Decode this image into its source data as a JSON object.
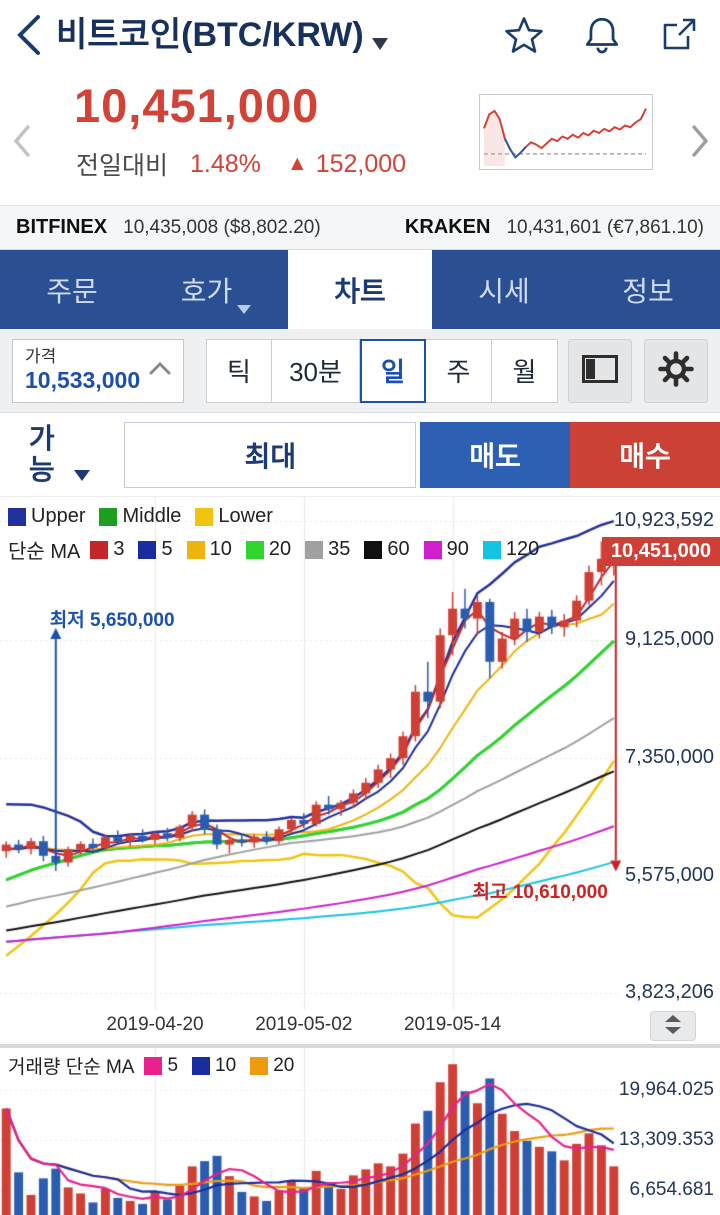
{
  "header": {
    "title": "비트코인(BTC/KRW)"
  },
  "price_summary": {
    "current": "10,451,000",
    "change_label": "전일대비",
    "change_percent": "1.48%",
    "up_arrow": "▲",
    "change_amount": "152,000"
  },
  "exchanges": [
    {
      "name": "BITFINEX",
      "price": "10,435,008",
      "fiat": "($8,802.20)"
    },
    {
      "name": "KRAKEN",
      "price": "10,431,601",
      "fiat": "(€7,861.10)"
    }
  ],
  "tabs": [
    {
      "label": "주문"
    },
    {
      "label": "호가"
    },
    {
      "label": "차트"
    },
    {
      "label": "시세"
    },
    {
      "label": "정보"
    }
  ],
  "controls": {
    "price_label": "가격",
    "price_value": "10,533,000",
    "timeframes": [
      {
        "label": "틱"
      },
      {
        "label": "30분"
      },
      {
        "label": "일"
      },
      {
        "label": "주"
      },
      {
        "label": "월"
      }
    ]
  },
  "trade": {
    "available": "가능",
    "max": "최대",
    "sell": "매도",
    "buy": "매수"
  },
  "legend": {
    "bollinger": [
      {
        "label": "Upper",
        "color": "#23309b"
      },
      {
        "label": "Middle",
        "color": "#1e9e1e"
      },
      {
        "label": "Lower",
        "color": "#f2c40f"
      }
    ],
    "ma_title": "단순 MA",
    "ma": [
      {
        "label": "3",
        "color": "#c3272b"
      },
      {
        "label": "5",
        "color": "#1a2d9e"
      },
      {
        "label": "10",
        "color": "#efb310"
      },
      {
        "label": "20",
        "color": "#2fd42f"
      },
      {
        "label": "35",
        "color": "#a0a0a0"
      },
      {
        "label": "60",
        "color": "#101010"
      },
      {
        "label": "90",
        "color": "#cf1fcf"
      },
      {
        "label": "120",
        "color": "#17c3e3"
      }
    ]
  },
  "volume_legend": {
    "title": "거래량 단순 MA",
    "ma": [
      {
        "label": "5",
        "color": "#e8218e"
      },
      {
        "label": "10",
        "color": "#1a2d9e"
      },
      {
        "label": "20",
        "color": "#ef9b10"
      }
    ]
  },
  "chart_data": {
    "type": "candlestick",
    "title": "BTC/KRW daily chart with Bollinger bands and simple moving averages",
    "y_range": [
      3560000,
      11280000
    ],
    "y_ticks": [
      {
        "value": 10923592,
        "label": "10,923,592"
      },
      {
        "value": 9125000,
        "label": "9,125,000"
      },
      {
        "value": 7350000,
        "label": "7,350,000"
      },
      {
        "value": 5575000,
        "label": "5,575,000"
      },
      {
        "value": 3823206,
        "label": "3,823,206"
      }
    ],
    "current_price": {
      "value": 10451000,
      "label": "10,451,000"
    },
    "x_ticks": [
      {
        "index": 12,
        "label": "2019-04-20"
      },
      {
        "index": 24,
        "label": "2019-05-02"
      },
      {
        "index": 36,
        "label": "2019-05-14"
      }
    ],
    "annotations": {
      "low": {
        "label": "최저 5,650,000",
        "value": 5650000,
        "index": 4
      },
      "high": {
        "label": "최고 10,610,000",
        "value": 10610000,
        "index": 48
      }
    },
    "candle_up_color": "#cf3f35",
    "candle_down_color": "#2a5cb0",
    "ma_windows": [
      3,
      5,
      10,
      20,
      35,
      60,
      90,
      120
    ],
    "bollinger": {
      "window": 20,
      "mult": 2
    },
    "candles": [
      [
        5950000,
        6100000,
        5850000,
        6050000
      ],
      [
        6050000,
        6120000,
        5920000,
        5980000
      ],
      [
        5980000,
        6150000,
        5900000,
        6100000
      ],
      [
        6100000,
        6180000,
        5800000,
        5880000
      ],
      [
        5880000,
        5950000,
        5650000,
        5780000
      ],
      [
        5780000,
        6020000,
        5720000,
        5980000
      ],
      [
        5980000,
        6100000,
        5900000,
        6060000
      ],
      [
        6060000,
        6140000,
        5960000,
        6000000
      ],
      [
        6000000,
        6200000,
        5950000,
        6160000
      ],
      [
        6160000,
        6260000,
        6050000,
        6100000
      ],
      [
        6100000,
        6220000,
        6020000,
        6180000
      ],
      [
        6180000,
        6280000,
        6080000,
        6120000
      ],
      [
        6120000,
        6250000,
        6050000,
        6220000
      ],
      [
        6220000,
        6300000,
        6100000,
        6150000
      ],
      [
        6150000,
        6350000,
        6100000,
        6320000
      ],
      [
        6320000,
        6550000,
        6250000,
        6500000
      ],
      [
        6500000,
        6580000,
        6200000,
        6280000
      ],
      [
        6280000,
        6350000,
        5980000,
        6050000
      ],
      [
        6050000,
        6180000,
        5920000,
        6120000
      ],
      [
        6120000,
        6220000,
        6020000,
        6080000
      ],
      [
        6080000,
        6200000,
        6000000,
        6170000
      ],
      [
        6170000,
        6250000,
        6050000,
        6100000
      ],
      [
        6100000,
        6320000,
        6060000,
        6280000
      ],
      [
        6280000,
        6450000,
        6220000,
        6420000
      ],
      [
        6420000,
        6520000,
        6300000,
        6360000
      ],
      [
        6360000,
        6700000,
        6320000,
        6650000
      ],
      [
        6650000,
        6780000,
        6500000,
        6580000
      ],
      [
        6580000,
        6720000,
        6480000,
        6680000
      ],
      [
        6680000,
        6880000,
        6600000,
        6820000
      ],
      [
        6820000,
        7050000,
        6720000,
        6980000
      ],
      [
        6980000,
        7250000,
        6900000,
        7180000
      ],
      [
        7180000,
        7420000,
        7050000,
        7350000
      ],
      [
        7350000,
        7750000,
        7250000,
        7680000
      ],
      [
        7680000,
        8450000,
        7600000,
        8350000
      ],
      [
        8350000,
        8800000,
        7950000,
        8200000
      ],
      [
        8200000,
        9300000,
        8100000,
        9200000
      ],
      [
        9200000,
        9850000,
        8900000,
        9600000
      ],
      [
        9600000,
        9900000,
        9300000,
        9450000
      ],
      [
        9450000,
        9800000,
        9200000,
        9700000
      ],
      [
        9700000,
        9750000,
        8550000,
        8800000
      ],
      [
        8800000,
        9250000,
        8700000,
        9150000
      ],
      [
        9150000,
        9550000,
        9050000,
        9450000
      ],
      [
        9450000,
        9600000,
        9100000,
        9250000
      ],
      [
        9250000,
        9550000,
        9150000,
        9480000
      ],
      [
        9480000,
        9580000,
        9220000,
        9320000
      ],
      [
        9320000,
        9520000,
        9180000,
        9420000
      ],
      [
        9420000,
        9800000,
        9320000,
        9720000
      ],
      [
        9720000,
        10250000,
        9650000,
        10150000
      ],
      [
        10150000,
        10610000,
        9950000,
        10350000
      ],
      [
        10350000,
        10550000,
        10100000,
        10451000
      ]
    ],
    "history_closes": [
      4050000,
      4100000,
      4020000,
      3980000,
      4080000,
      4120000,
      4050000,
      4000000,
      4100000,
      4150000,
      4080000,
      4120000,
      4180000,
      4100000,
      4050000,
      4150000,
      4200000,
      4120000,
      4080000,
      4180000,
      4220000,
      4150000,
      4100000,
      4050000,
      3950000,
      3900000,
      3980000,
      4020000,
      4080000,
      4120000,
      4180000,
      4250000,
      4300000,
      4220000,
      4280000,
      4350000,
      4300000,
      4380000,
      4420000,
      4350000,
      4400000,
      4480000,
      4520000,
      4450000,
      4500000,
      4550000,
      4480000,
      4420000,
      4500000,
      4580000,
      4620000,
      4550000,
      4600000,
      4650000,
      4580000,
      4520000,
      4600000,
      4680000,
      4720000,
      4650000,
      4600000,
      4550000,
      4620000,
      4700000,
      4780000,
      4850000,
      4920000,
      5000000,
      5400000,
      5750000,
      5900000,
      5850000,
      5950000,
      6050000,
      5980000,
      6100000,
      6020000,
      5950000,
      6000000,
      5920000
    ],
    "volume": {
      "type": "bar",
      "ma_windows": [
        5,
        10,
        20
      ],
      "y_ticks": [
        {
          "value": 19964.025,
          "label": "19,964.025"
        },
        {
          "value": 13309.353,
          "label": "13,309.353"
        },
        {
          "value": 6654.681,
          "label": "6,654.681"
        }
      ],
      "values": [
        17500,
        9000,
        6000,
        8200,
        9500,
        7000,
        6200,
        5000,
        6800,
        5600,
        5200,
        4800,
        6500,
        5400,
        7200,
        9800,
        10500,
        11200,
        8500,
        6400,
        5800,
        5200,
        6600,
        7800,
        6900,
        9200,
        7400,
        6800,
        8600,
        9400,
        10200,
        9800,
        11500,
        15500,
        17200,
        21000,
        23400,
        19800,
        18200,
        21500,
        16800,
        14500,
        13200,
        12400,
        11800,
        10600,
        12800,
        14200,
        12600,
        9800
      ]
    },
    "sparkline": {
      "values": [
        58,
        82,
        88,
        74,
        40,
        22,
        8,
        16,
        26,
        34,
        30,
        24,
        32,
        40,
        36,
        44,
        40,
        47,
        42,
        50,
        46,
        54,
        50,
        57,
        53,
        60,
        56,
        63,
        60,
        68,
        74,
        92
      ],
      "blue_range": [
        4,
        8
      ],
      "ref": 14,
      "line_color": "#d24236",
      "dip_color": "#2a5cb0"
    }
  }
}
